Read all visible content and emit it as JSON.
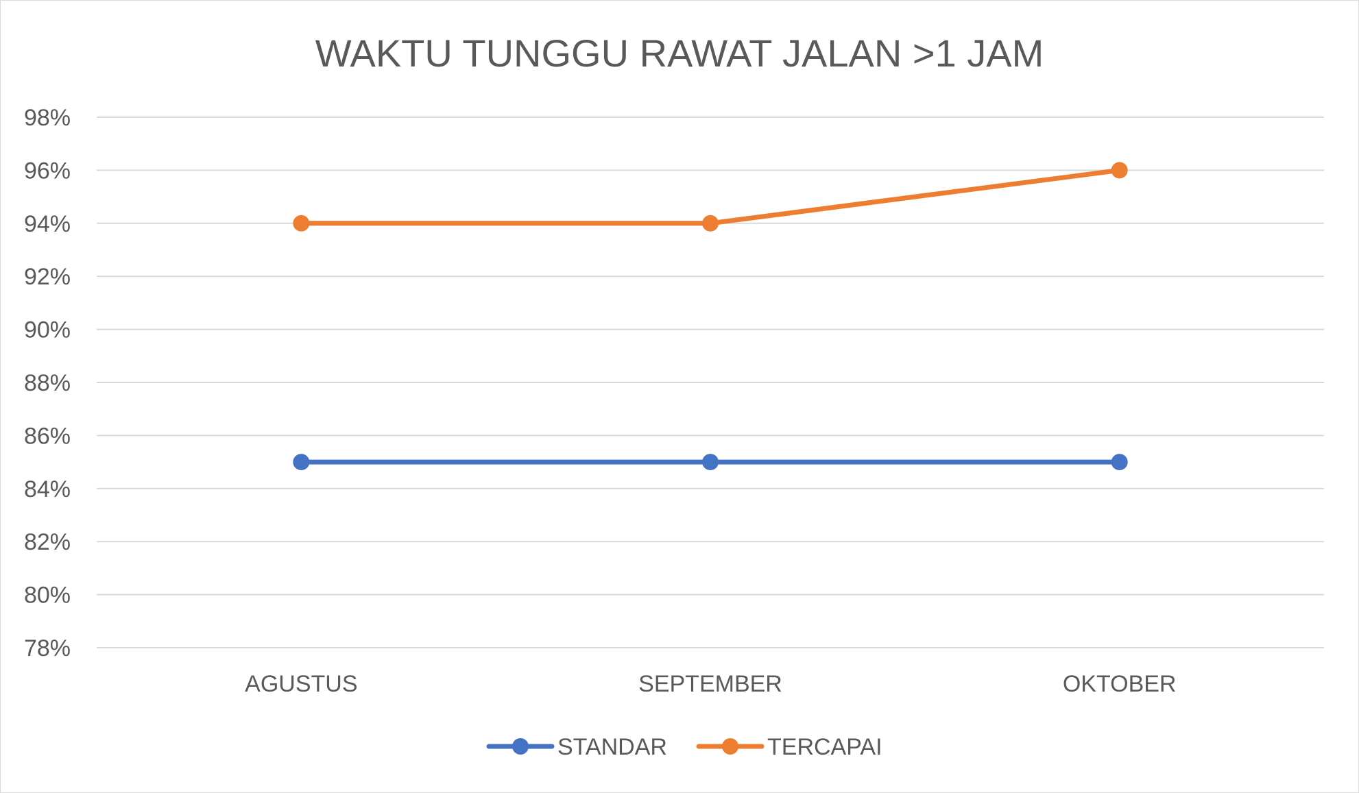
{
  "chart_data": {
    "type": "line",
    "title": "WAKTU TUNGGU RAWAT JALAN >1 JAM",
    "categories": [
      "AGUSTUS",
      "SEPTEMBER",
      "OKTOBER"
    ],
    "series": [
      {
        "name": "STANDAR",
        "values": [
          85,
          85,
          85
        ],
        "color": "#4472C4"
      },
      {
        "name": "TERCAPAI",
        "values": [
          94,
          94,
          96
        ],
        "color": "#ED7D31"
      }
    ],
    "ylim": [
      78,
      98
    ],
    "ytick_step": 2,
    "ytick_suffix": "%",
    "grid": true,
    "legend_position": "bottom"
  }
}
